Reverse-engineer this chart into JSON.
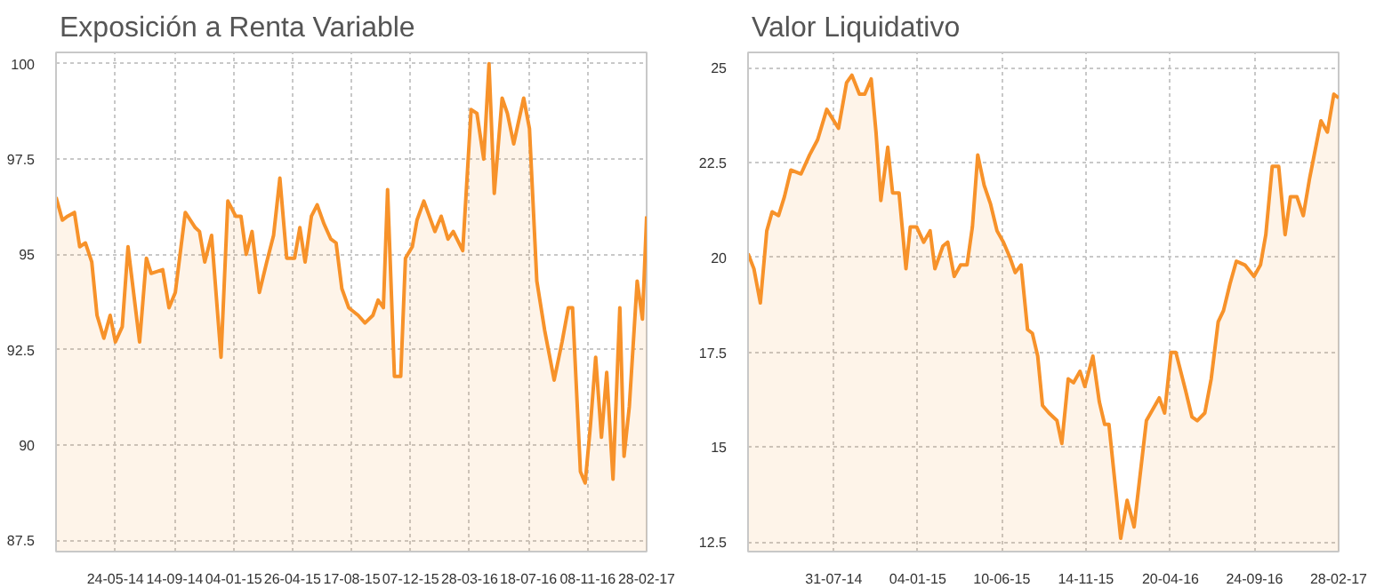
{
  "chart_data": [
    {
      "type": "area",
      "title": "Exposición a Renta Variable",
      "xlim": [
        "2014-01-31",
        "2017-02-28"
      ],
      "ylim": [
        87.2,
        100.3
      ],
      "yticks": [
        87.5,
        90,
        92.5,
        95,
        97.5,
        100
      ],
      "xticks": [
        {
          "value": "2014-05-24",
          "label": "24-05-14"
        },
        {
          "value": "2014-09-14",
          "label": "14-09-14"
        },
        {
          "value": "2015-01-04",
          "label": "04-01-15"
        },
        {
          "value": "2015-04-26",
          "label": "26-04-15"
        },
        {
          "value": "2015-08-17",
          "label": "17-08-15"
        },
        {
          "value": "2015-12-07",
          "label": "07-12-15"
        },
        {
          "value": "2016-03-28",
          "label": "28-03-16"
        },
        {
          "value": "2016-07-18",
          "label": "18-07-16"
        },
        {
          "value": "2016-11-08",
          "label": "08-11-16"
        },
        {
          "value": "2017-02-28",
          "label": "28-02-17"
        }
      ],
      "grid": true,
      "series": [
        {
          "color": "#f7922a",
          "x": [
            "2014-01-31",
            "2014-02-12",
            "2014-02-22",
            "2014-03-07",
            "2014-03-17",
            "2014-03-28",
            "2014-04-09",
            "2014-04-19",
            "2014-05-02",
            "2014-05-14",
            "2014-05-24",
            "2014-06-06",
            "2014-06-17",
            "2014-07-09",
            "2014-07-22",
            "2014-07-31",
            "2014-08-22",
            "2014-09-03",
            "2014-09-15",
            "2014-10-04",
            "2014-10-23",
            "2014-10-31",
            "2014-11-10",
            "2014-11-23",
            "2014-12-11",
            "2014-12-24",
            "2015-01-08",
            "2015-01-18",
            "2015-01-28",
            "2015-02-08",
            "2015-02-22",
            "2015-03-08",
            "2015-03-21",
            "2015-04-02",
            "2015-04-15",
            "2015-04-30",
            "2015-05-10",
            "2015-05-20",
            "2015-06-01",
            "2015-06-12",
            "2015-06-25",
            "2015-07-08",
            "2015-07-18",
            "2015-07-29",
            "2015-08-11",
            "2015-08-29",
            "2015-09-11",
            "2015-09-26",
            "2015-10-06",
            "2015-10-16",
            "2015-10-24",
            "2015-11-06",
            "2015-11-18",
            "2015-11-27",
            "2015-12-10",
            "2015-12-19",
            "2016-01-01",
            "2016-01-22",
            "2016-02-03",
            "2016-02-16",
            "2016-02-26",
            "2016-03-15",
            "2016-03-31",
            "2016-04-11",
            "2016-04-24",
            "2016-05-04",
            "2016-05-14",
            "2016-05-29",
            "2016-06-08",
            "2016-06-20",
            "2016-07-09",
            "2016-07-20",
            "2016-08-03",
            "2016-08-18",
            "2016-09-05",
            "2016-09-20",
            "2016-10-02",
            "2016-10-10",
            "2016-10-25",
            "2016-11-03",
            "2016-11-13",
            "2016-11-23",
            "2016-12-04",
            "2016-12-14",
            "2016-12-26",
            "2017-01-08",
            "2017-01-16",
            "2017-01-26",
            "2017-02-10",
            "2017-02-20",
            "2017-02-28"
          ],
          "values": [
            96.5,
            95.9,
            96.0,
            96.1,
            95.2,
            95.3,
            94.8,
            93.4,
            92.8,
            93.4,
            92.7,
            93.1,
            95.2,
            92.7,
            94.9,
            94.5,
            94.6,
            93.6,
            94.0,
            96.1,
            95.7,
            95.6,
            94.8,
            95.5,
            92.3,
            96.4,
            96.0,
            96.0,
            95.0,
            95.6,
            94.0,
            94.8,
            95.5,
            97.0,
            94.9,
            94.9,
            95.7,
            94.8,
            96.0,
            96.3,
            95.8,
            95.4,
            95.3,
            94.1,
            93.6,
            93.4,
            93.2,
            93.4,
            93.8,
            93.6,
            96.7,
            91.8,
            91.8,
            94.9,
            95.2,
            95.9,
            96.4,
            95.6,
            96.0,
            95.4,
            95.6,
            95.1,
            98.8,
            98.7,
            97.5,
            100,
            96.6,
            99.1,
            98.7,
            97.9,
            99.1,
            98.3,
            94.3,
            93.0,
            91.7,
            92.7,
            93.6,
            93.6,
            89.3,
            89.0,
            90.5,
            92.3,
            90.2,
            91.9,
            89.1,
            93.6,
            89.7,
            91.0,
            94.3,
            93.3,
            96.0
          ]
        }
      ]
    },
    {
      "type": "area",
      "title": "Valor Liquidativo",
      "xlim": [
        "2014-02-21",
        "2017-02-28"
      ],
      "ylim": [
        12.25,
        25.4
      ],
      "yticks": [
        12.5,
        15,
        17.5,
        20,
        22.5,
        25
      ],
      "xticks": [
        {
          "value": "2014-07-31",
          "label": "31-07-14"
        },
        {
          "value": "2015-01-04",
          "label": "04-01-15"
        },
        {
          "value": "2015-06-10",
          "label": "10-06-15"
        },
        {
          "value": "2015-11-14",
          "label": "14-11-15"
        },
        {
          "value": "2016-04-20",
          "label": "20-04-16"
        },
        {
          "value": "2016-09-24",
          "label": "24-09-16"
        },
        {
          "value": "2017-02-28",
          "label": "28-02-17"
        }
      ],
      "grid": true,
      "series": [
        {
          "color": "#f7922a",
          "x": [
            "2014-02-21",
            "2014-03-04",
            "2014-03-16",
            "2014-03-28",
            "2014-04-07",
            "2014-04-19",
            "2014-04-30",
            "2014-05-12",
            "2014-05-31",
            "2014-06-16",
            "2014-07-01",
            "2014-07-18",
            "2014-08-09",
            "2014-08-24",
            "2014-09-03",
            "2014-09-17",
            "2014-09-27",
            "2014-10-09",
            "2014-10-18",
            "2014-10-27",
            "2014-11-09",
            "2014-11-18",
            "2014-11-30",
            "2014-12-13",
            "2014-12-21",
            "2015-01-02",
            "2015-01-15",
            "2015-01-27",
            "2015-02-05",
            "2015-02-20",
            "2015-03-01",
            "2015-03-13",
            "2015-03-25",
            "2015-04-06",
            "2015-04-16",
            "2015-04-26",
            "2015-05-08",
            "2015-05-20",
            "2015-06-01",
            "2015-06-13",
            "2015-06-25",
            "2015-07-05",
            "2015-07-16",
            "2015-07-28",
            "2015-08-06",
            "2015-08-16",
            "2015-08-25",
            "2015-09-06",
            "2015-09-21",
            "2015-09-30",
            "2015-10-12",
            "2015-10-22",
            "2015-11-03",
            "2015-11-12",
            "2015-11-27",
            "2015-12-09",
            "2015-12-19",
            "2015-12-27",
            "2016-01-18",
            "2016-01-30",
            "2016-02-12",
            "2016-03-06",
            "2016-03-18",
            "2016-03-30",
            "2016-04-09",
            "2016-04-21",
            "2016-04-30",
            "2016-05-18",
            "2016-05-30",
            "2016-06-09",
            "2016-06-23",
            "2016-07-05",
            "2016-07-18",
            "2016-07-28",
            "2016-08-09",
            "2016-08-21",
            "2016-09-06",
            "2016-09-23",
            "2016-10-05",
            "2016-10-15",
            "2016-10-27",
            "2016-11-08",
            "2016-11-20",
            "2016-11-30",
            "2016-12-12",
            "2016-12-24",
            "2017-01-05",
            "2017-01-26",
            "2017-02-07",
            "2017-02-19",
            "2017-02-28"
          ],
          "values": [
            20.1,
            19.7,
            18.8,
            20.7,
            21.2,
            21.1,
            21.6,
            22.3,
            22.2,
            22.7,
            23.1,
            23.9,
            23.4,
            24.6,
            24.8,
            24.3,
            24.3,
            24.7,
            23.3,
            21.5,
            22.9,
            21.7,
            21.7,
            19.7,
            20.8,
            20.8,
            20.4,
            20.7,
            19.7,
            20.3,
            20.4,
            19.5,
            19.8,
            19.8,
            20.8,
            22.7,
            21.9,
            21.4,
            20.7,
            20.4,
            20.0,
            19.6,
            19.8,
            18.1,
            18.0,
            17.4,
            16.1,
            15.9,
            15.7,
            15.1,
            16.8,
            16.7,
            17.0,
            16.6,
            17.4,
            16.2,
            15.6,
            15.6,
            12.6,
            13.6,
            12.9,
            15.7,
            16.0,
            16.3,
            15.9,
            17.5,
            17.5,
            16.5,
            15.8,
            15.7,
            15.9,
            16.8,
            18.3,
            18.6,
            19.3,
            19.9,
            19.8,
            19.5,
            19.8,
            20.6,
            22.4,
            22.4,
            20.6,
            21.6,
            21.6,
            21.1,
            22.1,
            23.6,
            23.3,
            24.3,
            24.2
          ]
        }
      ]
    }
  ]
}
